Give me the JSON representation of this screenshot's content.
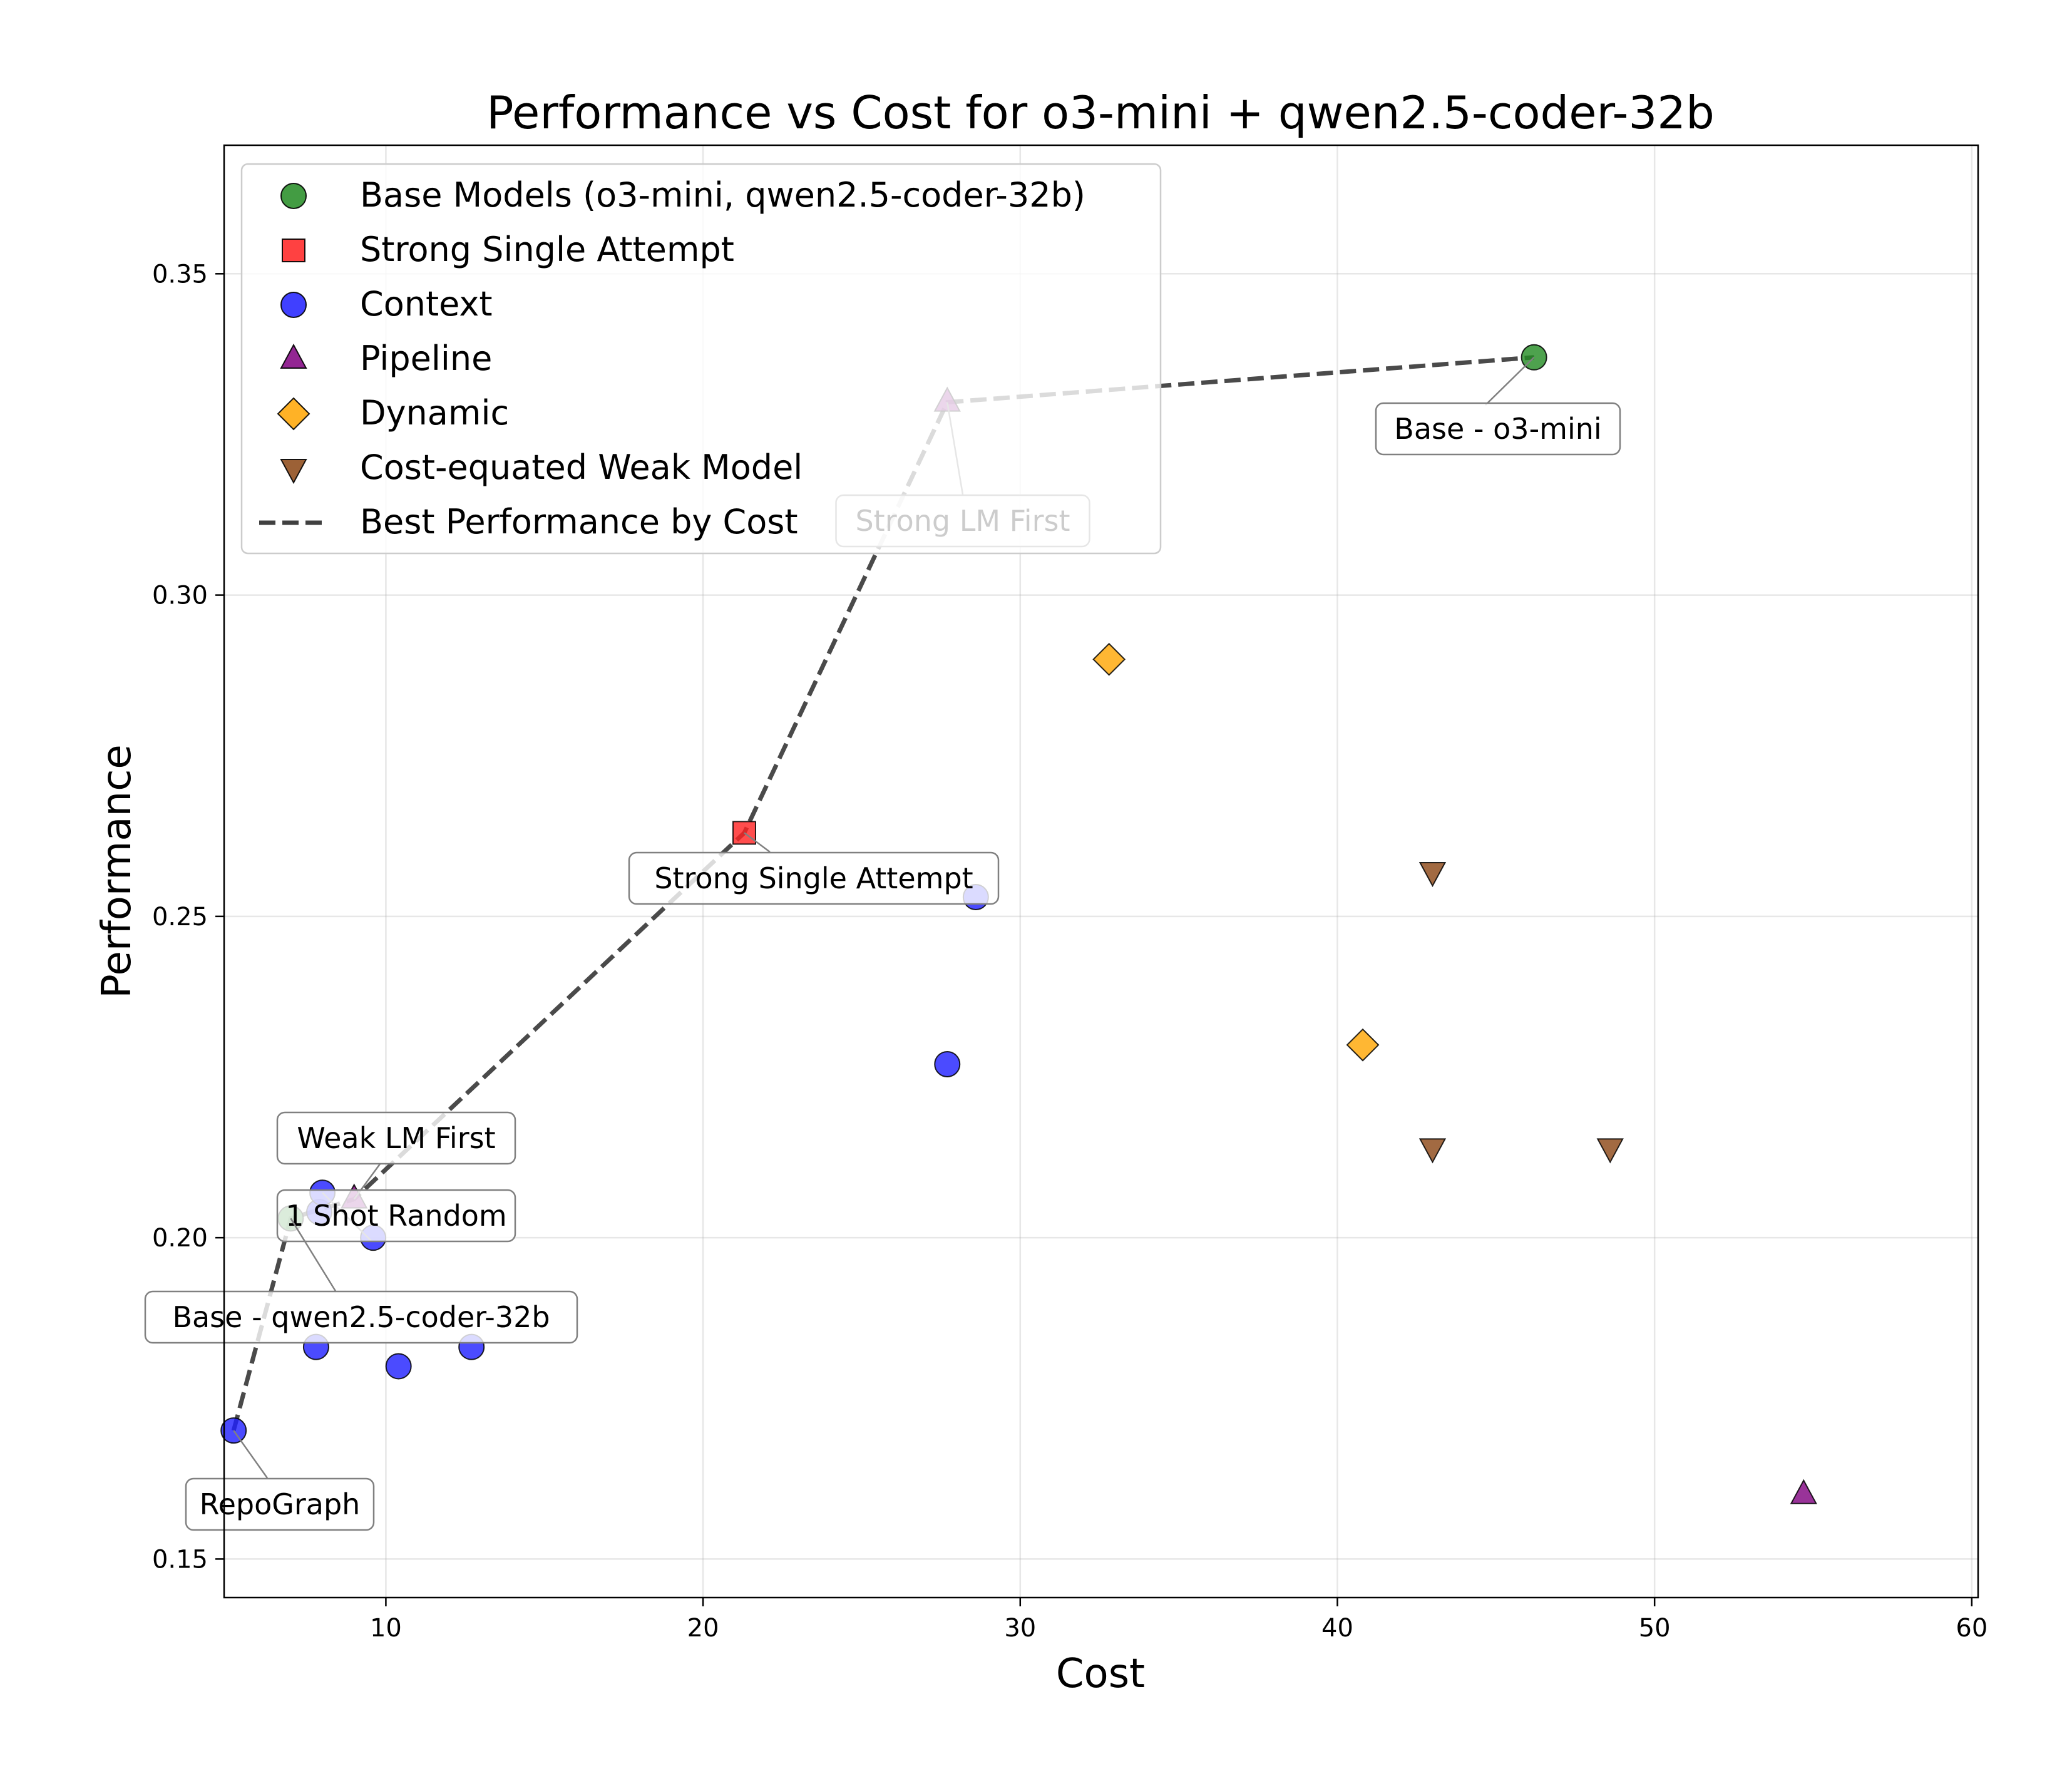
{
  "chart_data": {
    "type": "scatter",
    "title": "Performance vs Cost for o3-mini + qwen2.5-coder-32b",
    "xlabel": "Cost",
    "ylabel": "Performance",
    "xlim": [
      4.9,
      60.2
    ],
    "ylim": [
      0.144,
      0.37
    ],
    "x_ticks": [
      10,
      20,
      30,
      40,
      50,
      60
    ],
    "y_ticks": [
      0.15,
      0.2,
      0.25,
      0.3,
      0.35
    ],
    "x_tick_labels": [
      "10",
      "20",
      "30",
      "40",
      "50",
      "60"
    ],
    "y_tick_labels": [
      "0.15",
      "0.20",
      "0.25",
      "0.30",
      "0.35"
    ],
    "grid": true,
    "legend_position": "top-left",
    "colors": {
      "base": "#228B22",
      "strong": "#FF2020",
      "context": "#1E1EFF",
      "pipeline": "#800080",
      "dynamic": "#FFA500",
      "weak": "#8B4513",
      "best_line": "#404040"
    },
    "legend": [
      {
        "series": "base",
        "marker": "circle",
        "label": "Base Models (o3-mini, qwen2.5-coder-32b)"
      },
      {
        "series": "strong",
        "marker": "square",
        "label": "Strong Single Attempt"
      },
      {
        "series": "context",
        "marker": "circle",
        "label": "Context"
      },
      {
        "series": "pipeline",
        "marker": "triangle-up",
        "label": "Pipeline"
      },
      {
        "series": "dynamic",
        "marker": "diamond",
        "label": "Dynamic"
      },
      {
        "series": "weak",
        "marker": "triangle-down",
        "label": "Cost-equated Weak Model"
      },
      {
        "series": "best_line",
        "marker": "dashed-line",
        "label": "Best Performance by Cost"
      }
    ],
    "series": [
      {
        "name": "Base Models",
        "key": "base",
        "marker": "circle",
        "points": [
          {
            "x": 46.2,
            "y": 0.337
          },
          {
            "x": 7.0,
            "y": 0.203
          }
        ]
      },
      {
        "name": "Strong Single Attempt",
        "key": "strong",
        "marker": "square",
        "points": [
          {
            "x": 21.3,
            "y": 0.263
          }
        ]
      },
      {
        "name": "Context",
        "key": "context",
        "marker": "circle",
        "points": [
          {
            "x": 5.2,
            "y": 0.17
          },
          {
            "x": 7.8,
            "y": 0.183
          },
          {
            "x": 10.4,
            "y": 0.18
          },
          {
            "x": 12.7,
            "y": 0.183
          },
          {
            "x": 9.6,
            "y": 0.2
          },
          {
            "x": 7.9,
            "y": 0.204
          },
          {
            "x": 8.0,
            "y": 0.207
          },
          {
            "x": 27.7,
            "y": 0.227
          },
          {
            "x": 28.6,
            "y": 0.253
          }
        ]
      },
      {
        "name": "Pipeline",
        "key": "pipeline",
        "marker": "triangle-up",
        "points": [
          {
            "x": 54.7,
            "y": 0.16
          },
          {
            "x": 27.7,
            "y": 0.33
          },
          {
            "x": 9.0,
            "y": 0.206
          }
        ]
      },
      {
        "name": "Dynamic",
        "key": "dynamic",
        "marker": "diamond",
        "points": [
          {
            "x": 32.8,
            "y": 0.29
          },
          {
            "x": 40.8,
            "y": 0.23
          }
        ]
      },
      {
        "name": "Cost-equated Weak Model",
        "key": "weak",
        "marker": "triangle-down",
        "points": [
          {
            "x": 43.0,
            "y": 0.257
          },
          {
            "x": 43.0,
            "y": 0.214
          },
          {
            "x": 48.6,
            "y": 0.214
          }
        ]
      }
    ],
    "best_performance_line": {
      "name": "Best Performance by Cost",
      "points": [
        {
          "x": 5.2,
          "y": 0.17
        },
        {
          "x": 7.0,
          "y": 0.203
        },
        {
          "x": 9.0,
          "y": 0.206
        },
        {
          "x": 21.3,
          "y": 0.263
        },
        {
          "x": 27.7,
          "y": 0.33
        },
        {
          "x": 46.2,
          "y": 0.337
        }
      ]
    },
    "annotations": [
      {
        "text": "Base - o3-mini",
        "x": 46.2,
        "y": 0.337
      },
      {
        "text": "Strong LM First",
        "x": 27.7,
        "y": 0.33
      },
      {
        "text": "Strong Single Attempt",
        "x": 21.3,
        "y": 0.263
      },
      {
        "text": "Weak LM First",
        "x": 9.0,
        "y": 0.206
      },
      {
        "text": "1 Shot Random",
        "x": 8.0,
        "y": 0.207
      },
      {
        "text": "Base - qwen2.5-coder-32b",
        "x": 7.0,
        "y": 0.203
      },
      {
        "text": "RepoGraph",
        "x": 5.2,
        "y": 0.17
      }
    ]
  }
}
